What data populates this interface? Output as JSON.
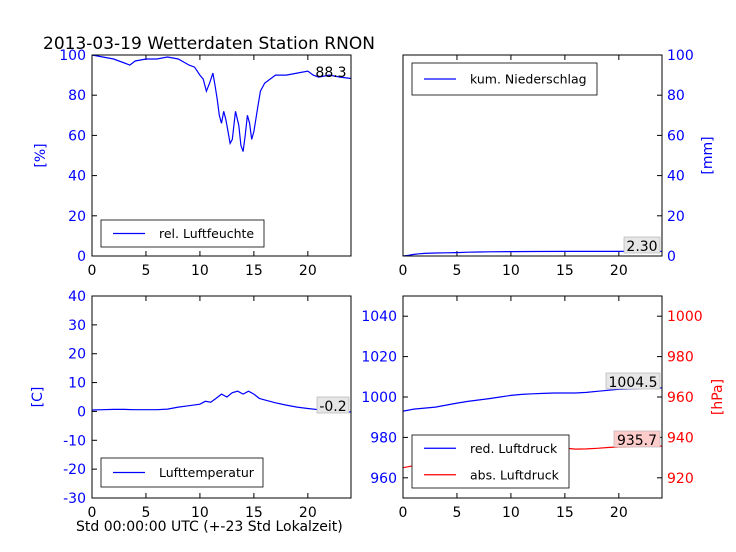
{
  "figure_title": "2013-03-19 Wetterdaten Station RNON",
  "x_axis_label": "Std 00:00:00 UTC (+-23 Std Lokalzeit)",
  "colors": {
    "blue": "#0000ff",
    "red": "#ff0000",
    "value_box_red": "#ffcccc",
    "value_box_gray": "#e6e6e6"
  },
  "chart_data": [
    {
      "type": "line",
      "ylabel": "[%]",
      "ylim": [
        0,
        100
      ],
      "yticks": [
        0,
        20,
        40,
        60,
        80,
        100
      ],
      "xlim": [
        0,
        24
      ],
      "xticks": [
        0,
        5,
        10,
        15,
        20
      ],
      "legend": "bottom-left",
      "last_value": "88.3",
      "series": [
        {
          "name": "rel. Luftfeuchte",
          "color": "#0000ff",
          "x": [
            0,
            1,
            2,
            3,
            3.5,
            4,
            5,
            6,
            7,
            8,
            9,
            9.5,
            10,
            10.3,
            10.6,
            10.9,
            11.2,
            11.4,
            11.6,
            11.8,
            12,
            12.2,
            12.4,
            12.6,
            12.8,
            13,
            13.3,
            13.6,
            13.8,
            14,
            14.2,
            14.4,
            14.6,
            14.8,
            15,
            15.3,
            15.6,
            16,
            16.5,
            17,
            18,
            19,
            20,
            20.5,
            21,
            22,
            23,
            24
          ],
          "y": [
            100,
            99,
            98,
            96,
            95,
            97,
            98,
            98,
            99,
            98,
            95,
            94,
            90,
            88,
            82,
            86,
            91,
            85,
            78,
            70,
            66,
            72,
            68,
            62,
            56,
            58,
            72,
            65,
            55,
            52,
            60,
            70,
            66,
            58,
            62,
            72,
            82,
            86,
            88,
            90,
            90,
            91,
            92,
            90,
            89,
            90,
            89,
            88.3
          ]
        }
      ]
    },
    {
      "type": "line",
      "ylabel": "[mm]",
      "ylim": [
        0,
        100
      ],
      "yticks": [
        0,
        20,
        40,
        60,
        80,
        100
      ],
      "xlim": [
        0,
        24
      ],
      "xticks": [
        0,
        5,
        10,
        15,
        20
      ],
      "legend": "top-left",
      "last_value": "2.30",
      "series": [
        {
          "name": "kum. Niederschlag",
          "color": "#0000ff",
          "x": [
            0,
            0.5,
            1,
            1.5,
            2,
            3,
            4,
            5,
            6,
            7,
            8,
            10,
            12,
            15,
            18,
            20,
            24
          ],
          "y": [
            0,
            0.3,
            0.8,
            1.1,
            1.3,
            1.5,
            1.6,
            1.7,
            1.9,
            2.0,
            2.1,
            2.2,
            2.25,
            2.3,
            2.3,
            2.3,
            2.3
          ]
        }
      ]
    },
    {
      "type": "line",
      "ylabel": "[C]",
      "ylim": [
        -30,
        40
      ],
      "yticks": [
        -30,
        -20,
        -10,
        0,
        10,
        20,
        30,
        40
      ],
      "xlim": [
        0,
        24
      ],
      "xticks": [
        0,
        5,
        10,
        15,
        20
      ],
      "legend": "bottom-left",
      "last_value": "-0.2",
      "series": [
        {
          "name": "Lufttemperatur",
          "color": "#0000ff",
          "x": [
            0,
            1,
            2,
            3,
            4,
            5,
            6,
            7,
            8,
            9,
            10,
            10.5,
            11,
            11.5,
            12,
            12.5,
            13,
            13.5,
            14,
            14.5,
            15,
            15.5,
            16,
            17,
            18,
            19,
            20,
            21,
            22,
            23,
            24
          ],
          "y": [
            0.5,
            0.6,
            0.7,
            0.7,
            0.6,
            0.6,
            0.6,
            0.8,
            1.5,
            2.0,
            2.5,
            3.5,
            3.2,
            4.5,
            6.0,
            5.0,
            6.5,
            7.0,
            6.0,
            7.0,
            6.0,
            4.5,
            4.0,
            3.0,
            2.2,
            1.5,
            1.0,
            0.6,
            0.3,
            0.0,
            -0.2
          ]
        }
      ]
    },
    {
      "type": "line",
      "ylabel_right": "[hPa]",
      "ylim": [
        950,
        1050
      ],
      "yticks": [
        960,
        980,
        1000,
        1020,
        1040
      ],
      "ylim_right": [
        910,
        1010
      ],
      "yticks_right": [
        920,
        940,
        960,
        980,
        1000
      ],
      "xlim": [
        0,
        24
      ],
      "xticks": [
        0,
        5,
        10,
        15,
        20
      ],
      "legend": "bottom-left",
      "last_value": "1004.5",
      "last_value_right": "935.7",
      "series": [
        {
          "name": "red. Luftdruck",
          "color": "#0000ff",
          "axis": "left",
          "x": [
            0,
            1,
            2,
            3,
            4,
            5,
            6,
            7,
            8,
            9,
            10,
            11,
            12,
            13,
            14,
            15,
            16,
            17,
            18,
            19,
            20,
            21,
            22,
            23,
            24
          ],
          "y": [
            993,
            994,
            994.5,
            995,
            996,
            997,
            997.8,
            998.5,
            999.2,
            1000,
            1000.8,
            1001.3,
            1001.6,
            1001.8,
            1002,
            1002,
            1002,
            1002.3,
            1002.8,
            1003.3,
            1003.8,
            1004,
            1004.2,
            1004.4,
            1004.5
          ]
        },
        {
          "name": "abs. Luftdruck",
          "color": "#ff0000",
          "axis": "right",
          "x": [
            0,
            1,
            2,
            3,
            4,
            5,
            6,
            7,
            8,
            9,
            10,
            11,
            12,
            13,
            14,
            15,
            16,
            17,
            18,
            19,
            20,
            21,
            22,
            23,
            24
          ],
          "y": [
            925,
            926,
            926.5,
            927,
            928,
            929,
            929.8,
            930.5,
            931.3,
            932,
            932.8,
            933.5,
            934,
            934.5,
            935,
            934.7,
            934.2,
            934.3,
            934.6,
            935,
            935.3,
            935.5,
            935.6,
            935.7,
            935.7
          ]
        }
      ]
    }
  ]
}
